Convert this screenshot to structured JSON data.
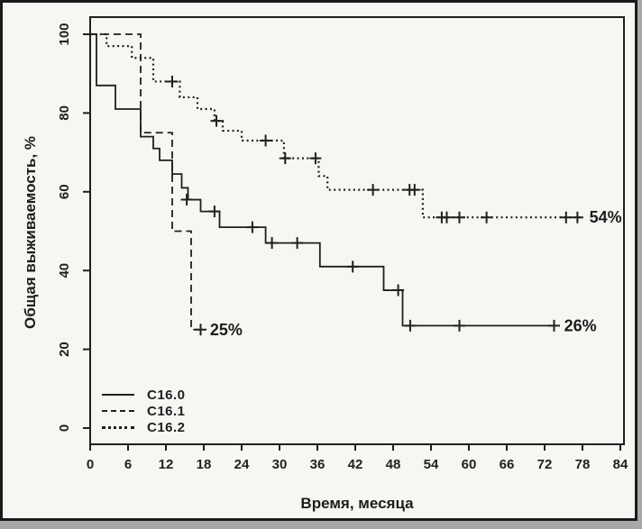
{
  "figure": {
    "background_color": "#f7f6f3",
    "frame_color": "#1a1a1a",
    "ink_color": "#1f1f1f"
  },
  "chart_data": {
    "type": "line",
    "subtype": "kaplan-meier-step",
    "title": "",
    "xlabel": "Время, месяца",
    "ylabel": "Общая выживаемость, %",
    "xlim": [
      0,
      84
    ],
    "ylim": [
      0,
      100
    ],
    "xticks": [
      0,
      6,
      12,
      18,
      24,
      30,
      36,
      42,
      48,
      54,
      60,
      66,
      72,
      78,
      84
    ],
    "yticks": [
      0,
      20,
      40,
      60,
      80,
      100
    ],
    "grid": false,
    "legend_position": "bottom-left",
    "series": [
      {
        "name": "C16.0",
        "style": "solid",
        "points": [
          [
            0,
            100
          ],
          [
            1,
            87
          ],
          [
            4,
            81
          ],
          [
            8,
            74
          ],
          [
            10,
            71
          ],
          [
            11,
            68
          ],
          [
            13,
            64.5
          ],
          [
            14.5,
            61
          ],
          [
            15.5,
            58
          ],
          [
            17.5,
            55
          ],
          [
            20.5,
            51
          ],
          [
            27.8,
            47
          ],
          [
            36.4,
            41
          ],
          [
            46.5,
            35
          ],
          [
            49.5,
            26
          ]
        ],
        "end_x": 73.8,
        "censors": [
          [
            15.3,
            58
          ],
          [
            19.7,
            55
          ],
          [
            25.7,
            51
          ],
          [
            28.8,
            47
          ],
          [
            32.8,
            47
          ],
          [
            41.6,
            41
          ],
          [
            48.8,
            35
          ],
          [
            50.7,
            26
          ],
          [
            58.5,
            26
          ],
          [
            73.5,
            26
          ]
        ],
        "end_label": "26%"
      },
      {
        "name": "C16.1",
        "style": "dashed",
        "points": [
          [
            0,
            100
          ],
          [
            8,
            75
          ],
          [
            13,
            50
          ],
          [
            16,
            25
          ]
        ],
        "end_x": 17.7,
        "censors": [
          [
            17.5,
            25
          ]
        ],
        "end_label": "25%"
      },
      {
        "name": "C16.2",
        "style": "dotted",
        "points": [
          [
            0,
            100
          ],
          [
            2.6,
            97
          ],
          [
            6.6,
            94
          ],
          [
            10,
            88
          ],
          [
            14.2,
            84
          ],
          [
            17,
            81
          ],
          [
            19.7,
            78
          ],
          [
            21,
            75.5
          ],
          [
            24,
            73
          ],
          [
            30.7,
            68.5
          ],
          [
            36.2,
            64
          ],
          [
            37.6,
            60.5
          ],
          [
            52.7,
            53.5
          ]
        ],
        "end_x": 77.8,
        "censors": [
          [
            13,
            88
          ],
          [
            20,
            78
          ],
          [
            27.8,
            73
          ],
          [
            30.9,
            68.5
          ],
          [
            35.7,
            68.5
          ],
          [
            44.8,
            60.5
          ],
          [
            50.6,
            60.5
          ],
          [
            51.4,
            60.5
          ],
          [
            55.7,
            53.5
          ],
          [
            56.5,
            53.5
          ],
          [
            58.5,
            53.5
          ],
          [
            62.8,
            53.5
          ],
          [
            75.4,
            53.5
          ],
          [
            77.2,
            53.5
          ]
        ],
        "end_label": "54%"
      }
    ]
  }
}
